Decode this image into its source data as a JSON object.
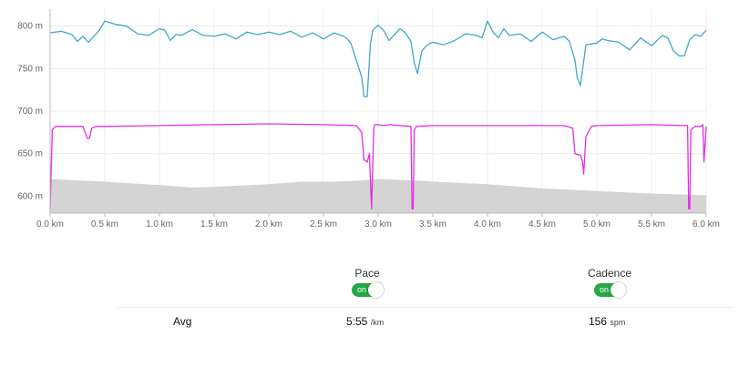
{
  "chart_data": {
    "type": "line",
    "x_unit": "km",
    "xlim": [
      0,
      6
    ],
    "ylim": [
      580,
      820
    ],
    "y_ticks": [
      {
        "value": 800,
        "label": "800 m"
      },
      {
        "value": 750,
        "label": "750 m"
      },
      {
        "value": 700,
        "label": "700 m"
      },
      {
        "value": 650,
        "label": "650 m"
      },
      {
        "value": 600,
        "label": "600 m"
      }
    ],
    "x_ticks": [
      {
        "value": 0.0,
        "label": "0.0 km"
      },
      {
        "value": 0.5,
        "label": "0.5 km"
      },
      {
        "value": 1.0,
        "label": "1.0 km"
      },
      {
        "value": 1.5,
        "label": "1.5 km"
      },
      {
        "value": 2.0,
        "label": "2.0 km"
      },
      {
        "value": 2.5,
        "label": "2.5 km"
      },
      {
        "value": 3.0,
        "label": "3.0 km"
      },
      {
        "value": 3.5,
        "label": "3.5 km"
      },
      {
        "value": 4.0,
        "label": "4.0 km"
      },
      {
        "value": 4.5,
        "label": "4.5 km"
      },
      {
        "value": 5.0,
        "label": "5.0 km"
      },
      {
        "value": 5.5,
        "label": "5.5 km"
      },
      {
        "value": 6.0,
        "label": "6.0 km"
      }
    ],
    "grid": true,
    "colors": {
      "pace": "#3fa9c9",
      "cadence": "#e62ce6",
      "elevation": "#d4d4d4"
    },
    "series": [
      {
        "key": "pace",
        "x": [
          0.0,
          0.1,
          0.2,
          0.25,
          0.3,
          0.35,
          0.45,
          0.5,
          0.6,
          0.7,
          0.8,
          0.9,
          1.0,
          1.05,
          1.1,
          1.15,
          1.2,
          1.3,
          1.4,
          1.5,
          1.6,
          1.7,
          1.8,
          1.9,
          2.0,
          2.1,
          2.2,
          2.3,
          2.4,
          2.5,
          2.6,
          2.7,
          2.75,
          2.8,
          2.85,
          2.87,
          2.9,
          2.93,
          2.95,
          3.0,
          3.05,
          3.1,
          3.15,
          3.2,
          3.25,
          3.3,
          3.33,
          3.36,
          3.4,
          3.45,
          3.5,
          3.6,
          3.7,
          3.8,
          3.9,
          3.95,
          4.0,
          4.05,
          4.1,
          4.15,
          4.2,
          4.3,
          4.4,
          4.5,
          4.6,
          4.7,
          4.75,
          4.8,
          4.82,
          4.85,
          4.9,
          5.0,
          5.05,
          5.1,
          5.2,
          5.3,
          5.4,
          5.5,
          5.6,
          5.65,
          5.7,
          5.75,
          5.8,
          5.85,
          5.9,
          5.95,
          6.0
        ],
        "y": [
          792,
          794,
          790,
          782,
          788,
          781,
          795,
          806,
          802,
          800,
          791,
          789,
          797,
          795,
          783,
          790,
          789,
          796,
          789,
          788,
          791,
          785,
          793,
          790,
          793,
          790,
          794,
          787,
          792,
          785,
          792,
          787,
          780,
          760,
          740,
          717,
          717,
          780,
          795,
          801,
          795,
          783,
          790,
          797,
          792,
          782,
          757,
          744,
          771,
          778,
          781,
          778,
          783,
          791,
          789,
          786,
          806,
          793,
          786,
          797,
          789,
          791,
          782,
          793,
          784,
          788,
          782,
          760,
          740,
          730,
          778,
          780,
          785,
          783,
          781,
          772,
          786,
          777,
          789,
          786,
          771,
          765,
          765,
          784,
          790,
          788,
          795
        ]
      },
      {
        "key": "cadence",
        "x": [
          0.0,
          0.02,
          0.05,
          0.1,
          0.3,
          0.34,
          0.36,
          0.38,
          0.42,
          0.5,
          1.0,
          1.5,
          2.0,
          2.5,
          2.8,
          2.85,
          2.87,
          2.9,
          2.92,
          2.94,
          2.96,
          2.97,
          3.0,
          3.05,
          3.1,
          3.3,
          3.31,
          3.32,
          3.33,
          3.35,
          3.5,
          4.0,
          4.5,
          4.7,
          4.78,
          4.8,
          4.85,
          4.87,
          4.88,
          4.9,
          4.95,
          5.0,
          5.5,
          5.8,
          5.83,
          5.84,
          5.85,
          5.86,
          5.9,
          5.95,
          5.97,
          5.98,
          6.0
        ],
        "y": [
          585,
          678,
          682,
          682,
          682,
          668,
          668,
          680,
          682,
          682,
          683,
          684,
          685,
          684,
          683,
          675,
          643,
          640,
          650,
          585,
          680,
          684,
          684,
          683,
          684,
          682,
          585,
          585,
          678,
          682,
          683,
          683,
          683,
          683,
          680,
          650,
          648,
          640,
          626,
          670,
          682,
          683,
          684,
          683,
          683,
          585,
          585,
          678,
          682,
          682,
          684,
          640,
          682
        ]
      },
      {
        "key": "elevation",
        "x": [
          0.0,
          0.5,
          1.0,
          1.3,
          1.5,
          2.0,
          2.3,
          2.6,
          2.8,
          3.0,
          3.2,
          3.4,
          3.5,
          4.0,
          4.5,
          5.0,
          5.5,
          6.0
        ],
        "y": [
          620,
          617,
          613,
          610,
          611,
          614,
          617,
          617,
          618,
          620,
          619,
          618,
          617,
          614,
          609,
          606,
          603,
          601
        ]
      }
    ]
  },
  "metrics": {
    "pace": {
      "title": "Pace",
      "toggle": "on",
      "avg_value": "5:55",
      "avg_unit": "/km"
    },
    "cadence": {
      "title": "Cadence",
      "toggle": "on",
      "avg_value": "156",
      "avg_unit": "spm"
    }
  },
  "summary": {
    "avg_label": "Avg"
  }
}
